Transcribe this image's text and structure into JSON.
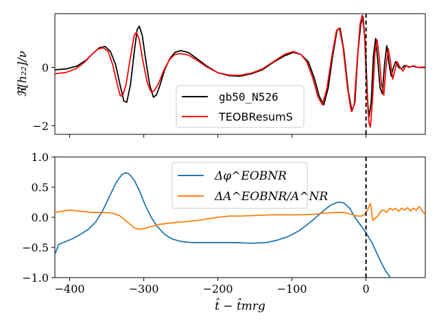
{
  "chart_data": [
    {
      "type": "line",
      "panel": "top",
      "ylabel": "ℜ[h₂₂]/ν",
      "xlim": [
        -420,
        80
      ],
      "ylim": [
        -2.3,
        1.85
      ],
      "yticks": [
        -2,
        0
      ],
      "ytick_labels": [
        "−2",
        "0"
      ],
      "xticks": [
        -400,
        -300,
        -200,
        -100,
        0
      ],
      "vline": 0,
      "legend": "lower-center",
      "series": [
        {
          "name": "gb50_N526",
          "color": "#000000",
          "points": [
            [
              -420,
              -0.08
            ],
            [
              -405,
              -0.05
            ],
            [
              -390,
              0.05
            ],
            [
              -378,
              0.25
            ],
            [
              -368,
              0.5
            ],
            [
              -360,
              0.68
            ],
            [
              -352,
              0.72
            ],
            [
              -345,
              0.55
            ],
            [
              -338,
              0.1
            ],
            [
              -332,
              -0.6
            ],
            [
              -327,
              -1.15
            ],
            [
              -323,
              -1.2
            ],
            [
              -318,
              -0.6
            ],
            [
              -313,
              0.5
            ],
            [
              -309,
              1.3
            ],
            [
              -306,
              1.42
            ],
            [
              -302,
              1.1
            ],
            [
              -297,
              0.2
            ],
            [
              -292,
              -0.6
            ],
            [
              -287,
              -1.02
            ],
            [
              -283,
              -0.95
            ],
            [
              -278,
              -0.6
            ],
            [
              -272,
              -0.1
            ],
            [
              -265,
              0.3
            ],
            [
              -258,
              0.52
            ],
            [
              -250,
              0.58
            ],
            [
              -240,
              0.52
            ],
            [
              -228,
              0.3
            ],
            [
              -215,
              0.05
            ],
            [
              -200,
              -0.18
            ],
            [
              -185,
              -0.28
            ],
            [
              -170,
              -0.3
            ],
            [
              -155,
              -0.22
            ],
            [
              -140,
              -0.08
            ],
            [
              -125,
              0.18
            ],
            [
              -110,
              0.4
            ],
            [
              -98,
              0.52
            ],
            [
              -88,
              0.45
            ],
            [
              -78,
              0.2
            ],
            [
              -70,
              -0.35
            ],
            [
              -63,
              -1.0
            ],
            [
              -57,
              -1.28
            ],
            [
              -51,
              -0.7
            ],
            [
              -45,
              0.4
            ],
            [
              -39,
              1.3
            ],
            [
              -35,
              1.35
            ],
            [
              -30,
              0.6
            ],
            [
              -24,
              -0.8
            ],
            [
              -19,
              -1.5
            ],
            [
              -15,
              -1.2
            ],
            [
              -11,
              0.5
            ],
            [
              -7,
              1.5
            ],
            [
              -4,
              1.75
            ],
            [
              -1,
              0.8
            ],
            [
              2,
              -1.1
            ],
            [
              4,
              -1.7
            ],
            [
              7,
              -1.2
            ],
            [
              10,
              0.4
            ],
            [
              13,
              1.0
            ],
            [
              16,
              0.2
            ],
            [
              19,
              -0.7
            ],
            [
              22,
              -0.9
            ],
            [
              25,
              0.1
            ],
            [
              28,
              0.75
            ],
            [
              31,
              0.15
            ],
            [
              34,
              -0.3
            ],
            [
              37,
              0.0
            ],
            [
              40,
              0.2
            ],
            [
              44,
              0.0
            ],
            [
              48,
              -0.05
            ],
            [
              52,
              0.07
            ],
            [
              58,
              0.02
            ],
            [
              64,
              0.04
            ],
            [
              70,
              0.0
            ],
            [
              80,
              0.0
            ]
          ]
        },
        {
          "name": "TEOBResumS",
          "color": "#ff0000",
          "points": [
            [
              -420,
              -0.22
            ],
            [
              -405,
              -0.17
            ],
            [
              -392,
              -0.05
            ],
            [
              -380,
              0.18
            ],
            [
              -370,
              0.45
            ],
            [
              -362,
              0.63
            ],
            [
              -355,
              0.68
            ],
            [
              -348,
              0.55
            ],
            [
              -342,
              0.1
            ],
            [
              -336,
              -0.55
            ],
            [
              -332,
              -0.95
            ],
            [
              -329,
              -1.0
            ],
            [
              -324,
              -0.6
            ],
            [
              -318,
              0.35
            ],
            [
              -313,
              1.1
            ],
            [
              -310,
              1.22
            ],
            [
              -306,
              0.95
            ],
            [
              -301,
              0.2
            ],
            [
              -295,
              -0.55
            ],
            [
              -290,
              -0.85
            ],
            [
              -286,
              -0.8
            ],
            [
              -280,
              -0.55
            ],
            [
              -273,
              -0.1
            ],
            [
              -265,
              0.28
            ],
            [
              -258,
              0.45
            ],
            [
              -250,
              0.48
            ],
            [
              -240,
              0.43
            ],
            [
              -228,
              0.25
            ],
            [
              -215,
              0.02
            ],
            [
              -200,
              -0.18
            ],
            [
              -185,
              -0.26
            ],
            [
              -170,
              -0.27
            ],
            [
              -155,
              -0.2
            ],
            [
              -140,
              -0.05
            ],
            [
              -125,
              0.2
            ],
            [
              -110,
              0.45
            ],
            [
              -98,
              0.55
            ],
            [
              -88,
              0.45
            ],
            [
              -80,
              0.2
            ],
            [
              -72,
              -0.35
            ],
            [
              -65,
              -1.0
            ],
            [
              -59,
              -1.28
            ],
            [
              -53,
              -0.75
            ],
            [
              -46,
              0.4
            ],
            [
              -40,
              1.25
            ],
            [
              -36,
              1.35
            ],
            [
              -31,
              0.7
            ],
            [
              -25,
              -0.7
            ],
            [
              -20,
              -1.5
            ],
            [
              -16,
              -1.3
            ],
            [
              -12,
              0.2
            ],
            [
              -8,
              1.5
            ],
            [
              -5,
              1.8
            ],
            [
              -2,
              1.1
            ],
            [
              1,
              -0.8
            ],
            [
              4,
              -1.9
            ],
            [
              6,
              -2.05
            ],
            [
              9,
              -1.0
            ],
            [
              12,
              0.5
            ],
            [
              15,
              0.95
            ],
            [
              18,
              0.3
            ],
            [
              21,
              -0.6
            ],
            [
              24,
              -0.95
            ],
            [
              27,
              0.0
            ],
            [
              30,
              0.65
            ],
            [
              33,
              0.2
            ],
            [
              36,
              -0.4
            ],
            [
              39,
              -0.1
            ],
            [
              42,
              0.2
            ],
            [
              46,
              0.0
            ],
            [
              50,
              -0.12
            ],
            [
              54,
              0.07
            ],
            [
              58,
              0.0
            ],
            [
              64,
              0.06
            ],
            [
              70,
              0.0
            ],
            [
              80,
              0.02
            ]
          ]
        }
      ]
    },
    {
      "type": "line",
      "panel": "bottom",
      "xlabel": "t̂ − t̂mrg",
      "xlim": [
        -420,
        80
      ],
      "ylim": [
        -1.0,
        1.0
      ],
      "yticks": [
        -1.0,
        -0.5,
        0.0,
        0.5,
        1.0
      ],
      "ytick_labels": [
        "−1.0",
        "−0.5",
        "0.0",
        "0.5",
        "1.0"
      ],
      "xticks": [
        -400,
        -300,
        -200,
        -100,
        0
      ],
      "xtick_labels": [
        "−400",
        "−300",
        "−200",
        "−100",
        "0"
      ],
      "vline": 0,
      "legend": "upper-center",
      "series": [
        {
          "name": "Δφ^EOBNR",
          "color": "#1f77b4",
          "points": [
            [
              -420,
              -0.62
            ],
            [
              -415,
              -0.45
            ],
            [
              -405,
              -0.4
            ],
            [
              -395,
              -0.35
            ],
            [
              -385,
              -0.28
            ],
            [
              -375,
              -0.2
            ],
            [
              -365,
              -0.08
            ],
            [
              -355,
              0.12
            ],
            [
              -345,
              0.38
            ],
            [
              -337,
              0.58
            ],
            [
              -330,
              0.7
            ],
            [
              -325,
              0.74
            ],
            [
              -320,
              0.72
            ],
            [
              -313,
              0.62
            ],
            [
              -306,
              0.44
            ],
            [
              -298,
              0.2
            ],
            [
              -290,
              0.0
            ],
            [
              -282,
              -0.15
            ],
            [
              -272,
              -0.28
            ],
            [
              -262,
              -0.36
            ],
            [
              -250,
              -0.4
            ],
            [
              -235,
              -0.42
            ],
            [
              -215,
              -0.42
            ],
            [
              -195,
              -0.42
            ],
            [
              -175,
              -0.42
            ],
            [
              -155,
              -0.43
            ],
            [
              -135,
              -0.42
            ],
            [
              -120,
              -0.38
            ],
            [
              -105,
              -0.32
            ],
            [
              -90,
              -0.22
            ],
            [
              -75,
              -0.08
            ],
            [
              -60,
              0.08
            ],
            [
              -48,
              0.2
            ],
            [
              -38,
              0.25
            ],
            [
              -30,
              0.24
            ],
            [
              -22,
              0.15
            ],
            [
              -15,
              0.0
            ],
            [
              -8,
              -0.12
            ],
            [
              -2,
              -0.22
            ],
            [
              3,
              -0.32
            ],
            [
              8,
              -0.42
            ],
            [
              14,
              -0.58
            ],
            [
              20,
              -0.74
            ],
            [
              26,
              -0.88
            ],
            [
              33,
              -1.0
            ]
          ]
        },
        {
          "name": "ΔA^EOBNR/A^NR",
          "color": "#ff7f0e",
          "points": [
            [
              -420,
              0.08
            ],
            [
              -410,
              0.1
            ],
            [
              -400,
              0.12
            ],
            [
              -385,
              0.1
            ],
            [
              -370,
              0.08
            ],
            [
              -355,
              0.08
            ],
            [
              -343,
              0.07
            ],
            [
              -333,
              0.03
            ],
            [
              -322,
              -0.08
            ],
            [
              -312,
              -0.18
            ],
            [
              -305,
              -0.2
            ],
            [
              -295,
              -0.17
            ],
            [
              -280,
              -0.12
            ],
            [
              -260,
              -0.09
            ],
            [
              -240,
              -0.07
            ],
            [
              -220,
              -0.04
            ],
            [
              -200,
              0.0
            ],
            [
              -185,
              0.02
            ],
            [
              -170,
              0.02
            ],
            [
              -150,
              0.03
            ],
            [
              -130,
              0.04
            ],
            [
              -110,
              0.04
            ],
            [
              -90,
              0.04
            ],
            [
              -70,
              0.05
            ],
            [
              -55,
              0.07
            ],
            [
              -40,
              0.08
            ],
            [
              -30,
              0.08
            ],
            [
              -20,
              0.05
            ],
            [
              -12,
              0.02
            ],
            [
              -6,
              0.02
            ],
            [
              -1,
              0.06
            ],
            [
              2,
              0.12
            ],
            [
              4,
              0.18
            ],
            [
              6,
              0.23
            ],
            [
              8,
              0.05
            ],
            [
              9,
              -0.05
            ],
            [
              12,
              -0.02
            ],
            [
              16,
              0.02
            ],
            [
              20,
              0.1
            ],
            [
              24,
              0.12
            ],
            [
              28,
              0.08
            ],
            [
              32,
              0.15
            ],
            [
              36,
              0.12
            ],
            [
              40,
              0.15
            ],
            [
              44,
              0.1
            ],
            [
              48,
              0.15
            ],
            [
              52,
              0.12
            ],
            [
              56,
              0.16
            ],
            [
              60,
              0.1
            ],
            [
              64,
              0.15
            ],
            [
              68,
              0.12
            ],
            [
              72,
              0.18
            ],
            [
              76,
              0.1
            ],
            [
              80,
              0.05
            ]
          ]
        }
      ]
    }
  ]
}
